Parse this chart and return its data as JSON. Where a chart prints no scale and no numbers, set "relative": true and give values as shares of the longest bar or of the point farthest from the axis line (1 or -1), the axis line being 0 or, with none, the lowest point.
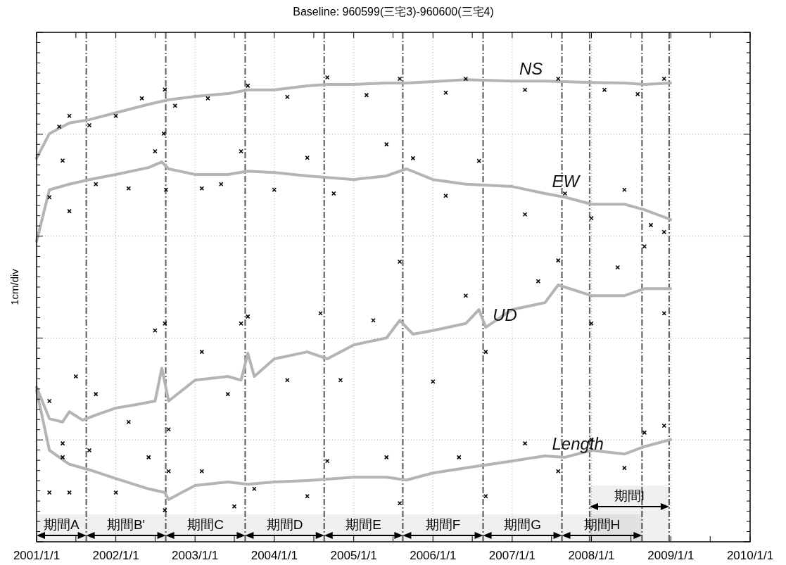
{
  "chart_data": {
    "type": "line",
    "title": "Baseline: 960599(三宅3)-960600(三宅4)",
    "ylabel": "1cm/div",
    "relative": true,
    "grid": true,
    "xlim": [
      "2001-01-01",
      "2010-01-01"
    ],
    "xticks": [
      {
        "value": "2001-01-01",
        "label": "2001/1/1"
      },
      {
        "value": "2001-07-01",
        "label": null
      },
      {
        "value": "2002-01-01",
        "label": "2002/1/1"
      },
      {
        "value": "2002-07-01",
        "label": null
      },
      {
        "value": "2003-01-01",
        "label": "2003/1/1"
      },
      {
        "value": "2003-07-01",
        "label": null
      },
      {
        "value": "2004-01-01",
        "label": "2004/1/1"
      },
      {
        "value": "2004-07-01",
        "label": null
      },
      {
        "value": "2005-01-01",
        "label": "2005/1/1"
      },
      {
        "value": "2005-07-01",
        "label": null
      },
      {
        "value": "2006-01-01",
        "label": "2006/1/1"
      },
      {
        "value": "2006-07-01",
        "label": null
      },
      {
        "value": "2007-01-01",
        "label": "2007/1/1"
      },
      {
        "value": "2007-07-01",
        "label": null
      },
      {
        "value": "2008-01-01",
        "label": "2008/1/1"
      },
      {
        "value": "2008-07-01",
        "label": null
      },
      {
        "value": "2009-01-01",
        "label": "2009/1/1"
      },
      {
        "value": "2009-07-01",
        "label": null
      },
      {
        "value": "2010-01-01",
        "label": "2010/1/1"
      }
    ],
    "series": [
      {
        "type": "scatter",
        "color": "#000000",
        "marker": "cross",
        "x": [
          "2001-04-15",
          "2001-06-01",
          "2001-09-01",
          "2002-01-01",
          "2002-05-01",
          "2002-08-15",
          "2002-10-01",
          "2003-03-01",
          "2003-09-01",
          "2004-03-01",
          "2004-09-01",
          "2005-03-01",
          "2005-08-01",
          "2006-03-01",
          "2006-06-01",
          "2007-03-01",
          "2007-08-01",
          "2008-03-01",
          "2008-08-01",
          "2008-12-01"
        ],
        "values": [
          0.894,
          0.917,
          0.897,
          0.917,
          0.955,
          0.974,
          0.939,
          0.955,
          0.982,
          0.958,
          1.0,
          0.962,
          0.997,
          0.967,
          0.997,
          0.973,
          0.997,
          0.973,
          0.964,
          0.997
        ]
      },
      {
        "type": "scatter",
        "color": "#000000",
        "marker": "cross",
        "x": [
          "2001-03-01",
          "2001-05-01",
          "2001-06-01",
          "2001-10-01",
          "2002-03-01",
          "2002-07-01",
          "2002-08-10",
          "2002-08-20",
          "2003-02-01",
          "2003-05-01",
          "2003-08-01",
          "2004-01-01",
          "2004-06-01",
          "2004-10-01",
          "2005-06-01",
          "2005-10-01",
          "2006-03-01",
          "2006-08-01",
          "2007-03-01",
          "2007-09-01",
          "2008-01-01",
          "2008-06-01",
          "2008-10-01",
          "2008-12-01"
        ],
        "values": [
          0.742,
          0.821,
          0.712,
          0.77,
          0.761,
          0.841,
          0.879,
          0.758,
          0.761,
          0.77,
          0.841,
          0.758,
          0.827,
          0.75,
          0.856,
          0.826,
          0.745,
          0.82,
          0.705,
          0.75,
          0.697,
          0.758,
          0.682,
          0.667
        ]
      },
      {
        "type": "scatter",
        "color": "#000000",
        "marker": "cross",
        "x": [
          "2001-03-01",
          "2001-05-01",
          "2001-07-01",
          "2001-10-01",
          "2002-03-01",
          "2002-07-01",
          "2002-08-15",
          "2002-09-01",
          "2003-02-01",
          "2003-06-01",
          "2003-08-01",
          "2003-09-01",
          "2004-03-01",
          "2004-08-01",
          "2004-11-01",
          "2005-04-01",
          "2005-08-01",
          "2006-01-01",
          "2006-06-01",
          "2006-09-01",
          "2007-05-01",
          "2007-08-01",
          "2008-01-01",
          "2008-05-01",
          "2008-09-01",
          "2008-12-01"
        ],
        "values": [
          0.303,
          0.182,
          0.356,
          0.318,
          0.258,
          0.455,
          0.47,
          0.242,
          0.409,
          0.318,
          0.47,
          0.485,
          0.348,
          0.492,
          0.348,
          0.477,
          0.603,
          0.345,
          0.53,
          0.409,
          0.561,
          0.606,
          0.47,
          0.591,
          0.636,
          0.492
        ]
      },
      {
        "type": "scatter",
        "color": "#000000",
        "marker": "cross",
        "x": [
          "2001-03-01",
          "2001-05-01",
          "2001-06-01",
          "2001-09-01",
          "2002-01-01",
          "2002-06-01",
          "2002-08-15",
          "2002-09-01",
          "2003-02-01",
          "2003-07-01",
          "2003-10-01",
          "2004-06-01",
          "2004-09-01",
          "2005-06-01",
          "2005-08-01",
          "2006-05-01",
          "2006-09-01",
          "2007-03-01",
          "2007-08-01",
          "2008-01-01",
          "2008-06-01",
          "2008-09-01",
          "2008-12-01"
        ],
        "values": [
          0.106,
          0.212,
          0.106,
          0.197,
          0.106,
          0.182,
          0.068,
          0.152,
          0.152,
          0.076,
          0.114,
          0.098,
          0.174,
          0.182,
          0.083,
          0.182,
          0.098,
          0.212,
          0.152,
          0.22,
          0.159,
          0.235,
          0.25
        ]
      },
      {
        "name": "NS",
        "color": "#b4b4b4",
        "x": [
          "2001-01-01",
          "2001-03-01",
          "2001-06-01",
          "2001-09-01",
          "2002-01-01",
          "2002-06-01",
          "2002-09-01",
          "2003-01-01",
          "2003-06-01",
          "2003-09-01",
          "2004-01-01",
          "2004-06-01",
          "2004-09-01",
          "2005-01-01",
          "2005-06-01",
          "2005-09-01",
          "2006-01-01",
          "2006-06-01",
          "2007-01-01",
          "2007-06-01",
          "2008-01-01",
          "2008-06-01",
          "2008-09-01",
          "2008-12-31"
        ],
        "values": [
          0.826,
          0.879,
          0.902,
          0.909,
          0.924,
          0.942,
          0.952,
          0.959,
          0.965,
          0.973,
          0.973,
          0.982,
          0.985,
          0.985,
          0.988,
          0.988,
          0.991,
          0.995,
          0.992,
          0.992,
          0.989,
          0.988,
          0.985,
          0.988
        ]
      },
      {
        "name": "EW",
        "color": "#b4b4b4",
        "x": [
          "2001-01-01",
          "2001-03-01",
          "2001-06-01",
          "2001-09-01",
          "2002-01-01",
          "2002-06-01",
          "2002-08-01",
          "2002-09-01",
          "2003-01-01",
          "2003-06-01",
          "2003-09-01",
          "2004-01-01",
          "2004-06-01",
          "2005-01-01",
          "2005-06-01",
          "2005-09-01",
          "2006-01-01",
          "2006-06-01",
          "2007-01-01",
          "2007-06-01",
          "2007-09-01",
          "2008-01-01",
          "2008-06-01",
          "2008-09-01",
          "2008-12-31"
        ],
        "values": [
          0.647,
          0.758,
          0.77,
          0.78,
          0.791,
          0.806,
          0.818,
          0.803,
          0.791,
          0.791,
          0.798,
          0.795,
          0.788,
          0.78,
          0.788,
          0.803,
          0.78,
          0.77,
          0.765,
          0.75,
          0.742,
          0.727,
          0.727,
          0.715,
          0.694
        ]
      },
      {
        "name": "UD",
        "color": "#b4b4b4",
        "x": [
          "2001-01-01",
          "2001-03-01",
          "2001-05-01",
          "2001-06-01",
          "2001-08-01",
          "2001-10-01",
          "2002-01-01",
          "2002-04-01",
          "2002-07-01",
          "2002-08-01",
          "2002-09-01",
          "2003-01-01",
          "2003-06-01",
          "2003-08-01",
          "2003-09-01",
          "2003-10-01",
          "2004-01-01",
          "2004-06-01",
          "2004-09-01",
          "2005-01-01",
          "2005-06-01",
          "2005-08-01",
          "2005-10-01",
          "2006-01-01",
          "2006-06-01",
          "2006-08-01",
          "2006-09-01",
          "2007-01-01",
          "2007-06-01",
          "2007-08-01",
          "2008-01-01",
          "2008-06-01",
          "2008-09-01",
          "2008-12-31"
        ],
        "values": [
          0.333,
          0.265,
          0.258,
          0.28,
          0.262,
          0.273,
          0.288,
          0.295,
          0.303,
          0.374,
          0.303,
          0.348,
          0.356,
          0.348,
          0.406,
          0.356,
          0.394,
          0.409,
          0.394,
          0.424,
          0.439,
          0.477,
          0.447,
          0.455,
          0.47,
          0.5,
          0.462,
          0.5,
          0.515,
          0.553,
          0.53,
          0.53,
          0.545,
          0.545
        ]
      },
      {
        "name": "Length",
        "color": "#b4b4b4",
        "x": [
          "2001-01-01",
          "2001-03-01",
          "2001-06-01",
          "2001-09-01",
          "2002-01-01",
          "2002-06-01",
          "2002-08-15",
          "2002-09-01",
          "2003-01-01",
          "2003-06-01",
          "2003-09-01",
          "2004-01-01",
          "2004-06-01",
          "2005-01-01",
          "2005-06-01",
          "2005-09-01",
          "2006-01-01",
          "2006-06-01",
          "2007-01-01",
          "2007-06-01",
          "2007-09-01",
          "2008-01-01",
          "2008-06-01",
          "2008-09-01",
          "2008-12-31"
        ],
        "values": [
          0.326,
          0.197,
          0.167,
          0.155,
          0.136,
          0.114,
          0.106,
          0.091,
          0.121,
          0.129,
          0.124,
          0.129,
          0.132,
          0.139,
          0.139,
          0.133,
          0.148,
          0.159,
          0.174,
          0.185,
          0.182,
          0.197,
          0.189,
          0.205,
          0.22
        ]
      }
    ],
    "ref_lines": [
      {
        "axis": "x",
        "value": "2001-08-18",
        "color": "#666666",
        "line_style": "dashdot"
      },
      {
        "axis": "x",
        "value": "2002-08-19",
        "color": "#666666",
        "line_style": "dashdot"
      },
      {
        "axis": "x",
        "value": "2003-08-20",
        "color": "#666666",
        "line_style": "dashdot"
      },
      {
        "axis": "x",
        "value": "2004-08-18",
        "color": "#666666",
        "line_style": "dashdot"
      },
      {
        "axis": "x",
        "value": "2005-08-15",
        "color": "#666666",
        "line_style": "dashdot"
      },
      {
        "axis": "x",
        "value": "2006-08-20",
        "color": "#666666",
        "line_style": "dashdot"
      },
      {
        "axis": "x",
        "value": "2007-08-18",
        "color": "#666666",
        "line_style": "dashdot"
      },
      {
        "axis": "x",
        "value": "2007-12-24",
        "color": "#666666",
        "line_style": "dashdot"
      },
      {
        "axis": "x",
        "value": "2008-08-21",
        "color": "#666666",
        "line_style": "dashdot"
      },
      {
        "axis": "x",
        "value": "2008-12-24",
        "color": "#666666",
        "line_style": "dashdot"
      }
    ],
    "bands": [
      {
        "axis": "x",
        "from": "2001-01-01",
        "to": "2001-08-18",
        "label": "期間A",
        "color": "#000000"
      },
      {
        "axis": "x",
        "from": "2001-08-18",
        "to": "2002-08-19",
        "label": "期間B'",
        "color": "#000000"
      },
      {
        "axis": "x",
        "from": "2002-08-19",
        "to": "2003-08-20",
        "label": "期間C",
        "color": "#000000"
      },
      {
        "axis": "x",
        "from": "2003-08-20",
        "to": "2004-08-18",
        "label": "期間D",
        "color": "#000000"
      },
      {
        "axis": "x",
        "from": "2004-08-18",
        "to": "2005-08-15",
        "label": "期間E",
        "color": "#000000"
      },
      {
        "axis": "x",
        "from": "2005-08-15",
        "to": "2006-08-20",
        "label": "期間F",
        "color": "#000000"
      },
      {
        "axis": "x",
        "from": "2006-08-20",
        "to": "2007-08-18",
        "label": "期間G",
        "color": "#000000"
      },
      {
        "axis": "x",
        "from": "2007-08-18",
        "to": "2008-08-21",
        "label": "期間H",
        "color": "#000000"
      },
      {
        "axis": "x",
        "from": "2007-12-24",
        "to": "2008-12-24",
        "label": "期間I",
        "color": "#000000"
      }
    ]
  }
}
